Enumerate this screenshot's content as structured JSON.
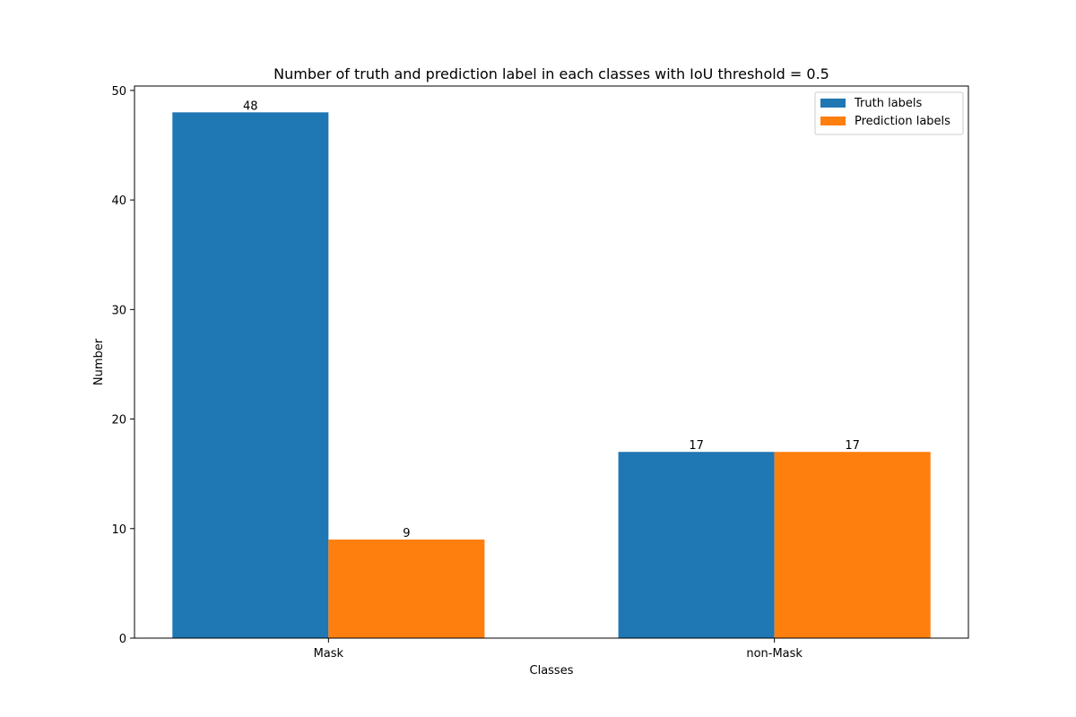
{
  "chart_data": {
    "type": "bar",
    "title": "Number of truth and prediction label in each classes with IoU threshold = 0.5",
    "xlabel": "Classes",
    "ylabel": "Number",
    "categories": [
      "Mask",
      "non-Mask"
    ],
    "series": [
      {
        "name": "Truth labels",
        "values": [
          48,
          17
        ],
        "color": "#1f77b4"
      },
      {
        "name": "Prediction labels",
        "values": [
          9,
          17
        ],
        "color": "#ff7f0e"
      }
    ],
    "ylim": [
      0,
      50.4
    ],
    "yticks": [
      0,
      10,
      20,
      30,
      40,
      50
    ],
    "grid": false,
    "legend_position": "top-right"
  }
}
